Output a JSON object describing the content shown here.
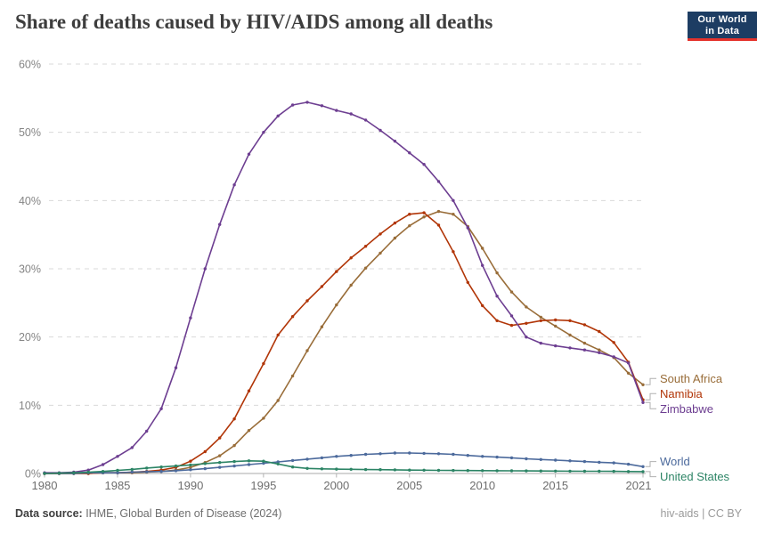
{
  "header": {
    "title": "Share of deaths caused by HIV/AIDS among all deaths",
    "logo": {
      "line1": "Our World",
      "line2": "in Data",
      "bg_color": "#1d3d63",
      "accent_color": "#e5332c"
    }
  },
  "chart_data": {
    "type": "line",
    "title": "Share of deaths caused by HIV/AIDS among all deaths",
    "xlabel": "",
    "ylabel": "",
    "ylim": [
      0,
      60
    ],
    "yticks": [
      0,
      10,
      20,
      30,
      40,
      50,
      60
    ],
    "ytick_suffix": "%",
    "xticks": [
      1980,
      1985,
      1990,
      1995,
      2000,
      2005,
      2010,
      2015,
      2021
    ],
    "grid": "dashed-horizontal",
    "legend_position": "right-of-line-ends",
    "marker": "circle",
    "x": [
      1980,
      1981,
      1982,
      1983,
      1984,
      1985,
      1986,
      1987,
      1988,
      1989,
      1990,
      1991,
      1992,
      1993,
      1994,
      1995,
      1996,
      1997,
      1998,
      1999,
      2000,
      2001,
      2002,
      2003,
      2004,
      2005,
      2006,
      2007,
      2008,
      2009,
      2010,
      2011,
      2012,
      2013,
      2014,
      2015,
      2016,
      2017,
      2018,
      2019,
      2020,
      2021
    ],
    "series": [
      {
        "name": "South Africa",
        "color": "#996D39",
        "values": [
          0,
          0,
          0,
          0,
          0.1,
          0.1,
          0.1,
          0.2,
          0.3,
          0.5,
          0.9,
          1.6,
          2.6,
          4.1,
          6.3,
          8.1,
          10.7,
          14.3,
          18.0,
          21.5,
          24.7,
          27.6,
          30.1,
          32.3,
          34.5,
          36.3,
          37.6,
          38.4,
          38.0,
          36.2,
          33.0,
          29.4,
          26.6,
          24.4,
          22.9,
          21.6,
          20.3,
          19.1,
          18.1,
          17.0,
          14.7,
          13.0
        ]
      },
      {
        "name": "Namibia",
        "color": "#B13507",
        "values": [
          0,
          0,
          0,
          0,
          0.1,
          0.1,
          0.2,
          0.3,
          0.5,
          0.9,
          1.8,
          3.2,
          5.2,
          8.0,
          12.1,
          16.1,
          20.3,
          23.0,
          25.3,
          27.4,
          29.6,
          31.6,
          33.3,
          35.1,
          36.7,
          38.0,
          38.2,
          36.4,
          32.5,
          28.0,
          24.6,
          22.4,
          21.7,
          22.0,
          22.4,
          22.5,
          22.4,
          21.8,
          20.8,
          19.2,
          16.3,
          10.8
        ]
      },
      {
        "name": "Zimbabwe",
        "color": "#6D3E91",
        "values": [
          0.1,
          0.1,
          0.2,
          0.5,
          1.3,
          2.5,
          3.8,
          6.2,
          9.5,
          15.5,
          22.8,
          30.0,
          36.5,
          42.3,
          46.8,
          50.0,
          52.4,
          54.0,
          54.4,
          53.9,
          53.2,
          52.7,
          51.8,
          50.3,
          48.7,
          47.0,
          45.3,
          42.8,
          40.0,
          36.0,
          30.5,
          26.0,
          23.1,
          20.0,
          19.1,
          18.7,
          18.4,
          18.1,
          17.7,
          17.1,
          16.2,
          10.4
        ]
      },
      {
        "name": "World",
        "color": "#4C6A9C",
        "values": [
          0,
          0,
          0,
          0.1,
          0.1,
          0.1,
          0.2,
          0.25,
          0.3,
          0.4,
          0.55,
          0.7,
          0.9,
          1.1,
          1.3,
          1.5,
          1.7,
          1.9,
          2.1,
          2.3,
          2.5,
          2.65,
          2.8,
          2.9,
          3.0,
          3.0,
          2.95,
          2.9,
          2.8,
          2.65,
          2.5,
          2.4,
          2.3,
          2.15,
          2.05,
          1.95,
          1.85,
          1.75,
          1.65,
          1.55,
          1.35,
          1.0
        ]
      },
      {
        "name": "United States",
        "color": "#2C8465",
        "values": [
          0,
          0.05,
          0.1,
          0.2,
          0.3,
          0.45,
          0.6,
          0.8,
          0.95,
          1.1,
          1.25,
          1.45,
          1.6,
          1.75,
          1.85,
          1.8,
          1.4,
          0.95,
          0.75,
          0.68,
          0.64,
          0.61,
          0.58,
          0.56,
          0.53,
          0.5,
          0.48,
          0.46,
          0.44,
          0.43,
          0.42,
          0.4,
          0.39,
          0.38,
          0.36,
          0.35,
          0.34,
          0.33,
          0.32,
          0.31,
          0.29,
          0.28
        ]
      }
    ]
  },
  "footer": {
    "datasource_label": "Data source:",
    "datasource_value": " IHME, Global Burden of Disease (2024)",
    "right_text": "hiv-aids | CC BY"
  }
}
